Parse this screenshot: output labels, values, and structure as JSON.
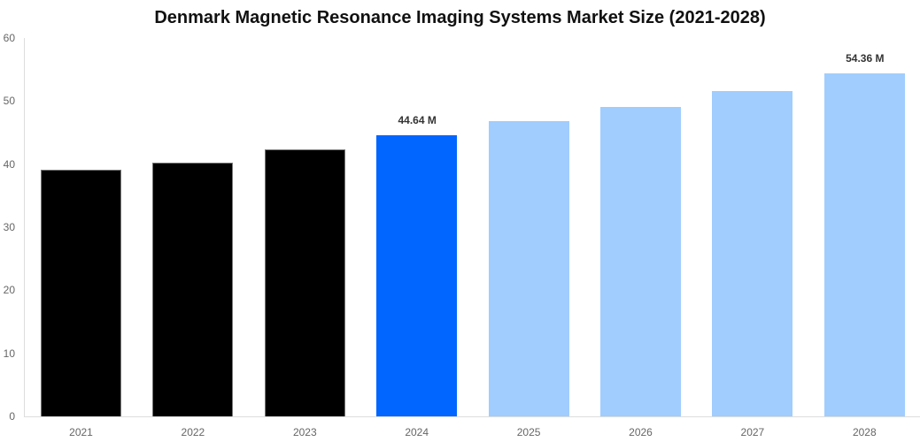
{
  "chart_data": {
    "type": "bar",
    "title": "Denmark Magnetic Resonance Imaging Systems Market Size (2021-2028)",
    "xlabel": "",
    "ylabel": "",
    "ylim": [
      0,
      60
    ],
    "yticks": [
      "0",
      "10",
      "20",
      "30",
      "40",
      "50",
      "60"
    ],
    "grid": false,
    "legend": null,
    "categories": [
      "2021",
      "2022",
      "2023",
      "2024",
      "2025",
      "2026",
      "2027",
      "2028"
    ],
    "values": [
      39.1,
      40.2,
      42.4,
      44.64,
      46.8,
      49.1,
      51.6,
      54.36
    ],
    "bar_styles": [
      "historical",
      "historical",
      "historical",
      "current",
      "forecast",
      "forecast",
      "forecast",
      "forecast"
    ],
    "annotations": [
      {
        "category": "2024",
        "label": "44.64 M"
      },
      {
        "category": "2028",
        "label": "54.36 M"
      }
    ],
    "colors": {
      "historical": "#000000",
      "current": "#0066ff",
      "forecast": "#a0cdfd"
    }
  }
}
